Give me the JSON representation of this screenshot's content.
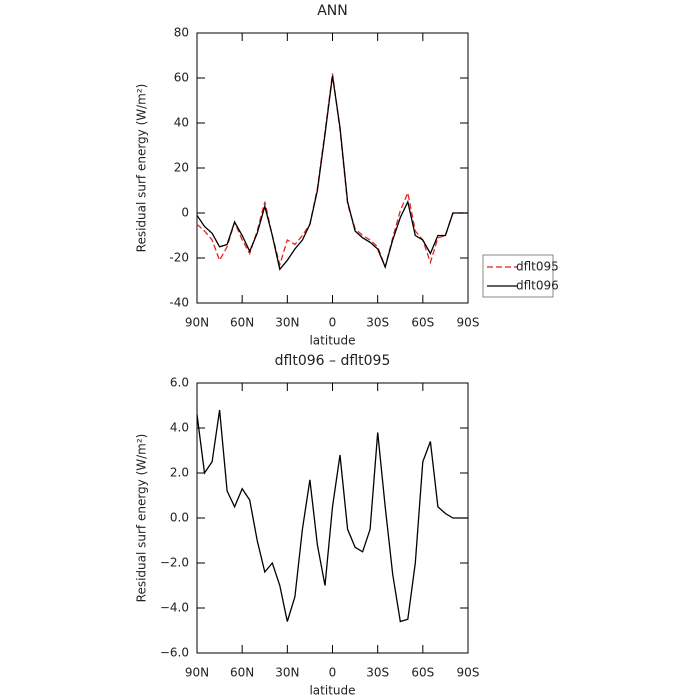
{
  "chart_data": [
    {
      "type": "line",
      "title": "ANN",
      "xlabel": "latitude",
      "ylabel": "Residual surf energy (W/m²)",
      "x": [
        90,
        85,
        80,
        75,
        70,
        65,
        60,
        55,
        50,
        45,
        40,
        35,
        30,
        25,
        20,
        15,
        10,
        5,
        0,
        -5,
        -10,
        -15,
        -20,
        -25,
        -30,
        -35,
        -40,
        -45,
        -50,
        -55,
        -60,
        -65,
        -70,
        -75,
        -80,
        -85,
        -90
      ],
      "series": [
        {
          "name": "dflt095",
          "color": "#e8231f",
          "dash": true,
          "values": [
            -5,
            -8,
            -12,
            -21,
            -15,
            -4,
            -12,
            -18,
            -8,
            5,
            -10,
            -23,
            -12,
            -14,
            -10,
            -5,
            11,
            36,
            62,
            37,
            4,
            -7,
            -10,
            -12,
            -15,
            -24,
            -11,
            1,
            9,
            -8,
            -12,
            -22,
            -11,
            -10,
            0,
            0,
            0
          ]
        },
        {
          "name": "dflt096",
          "color": "#000000",
          "dash": false,
          "values": [
            -1,
            -6,
            -9,
            -15,
            -14,
            -4,
            -10,
            -17,
            -9,
            3,
            -10,
            -25,
            -21,
            -16,
            -12,
            -5,
            10,
            35,
            61,
            38,
            5,
            -8,
            -11,
            -13,
            -16,
            -24,
            -12,
            -2,
            5,
            -10,
            -12,
            -18,
            -10,
            -10,
            0,
            0,
            0
          ]
        }
      ],
      "xlim": [
        90,
        -90
      ],
      "xticks": [
        {
          "value": 90,
          "label": "90N"
        },
        {
          "value": 60,
          "label": "60N"
        },
        {
          "value": 30,
          "label": "30N"
        },
        0,
        {
          "value": -30,
          "label": "30S"
        },
        {
          "value": -60,
          "label": "60S"
        },
        {
          "value": -90,
          "label": "90S"
        }
      ],
      "ylim": [
        -40,
        80
      ],
      "yticks": [
        -40,
        -20,
        0,
        20,
        40,
        60,
        80
      ]
    },
    {
      "type": "line",
      "title": "dflt096 – dflt095",
      "xlabel": "latitude",
      "ylabel": "Residual surf energy (W/m²)",
      "x": [
        90,
        85,
        80,
        75,
        70,
        65,
        60,
        55,
        50,
        45,
        40,
        35,
        30,
        25,
        20,
        15,
        10,
        5,
        0,
        -5,
        -10,
        -15,
        -20,
        -25,
        -30,
        -35,
        -40,
        -45,
        -50,
        -55,
        -60,
        -65,
        -70,
        -75,
        -80,
        -85,
        -90
      ],
      "series": [
        {
          "color": "#000000",
          "dash": false,
          "values": [
            4.6,
            2.0,
            2.5,
            4.8,
            1.2,
            0.5,
            1.3,
            0.8,
            -1.0,
            -2.4,
            -2.0,
            -3.0,
            -4.6,
            -3.5,
            -0.5,
            1.7,
            -1.2,
            -3.0,
            0.5,
            2.8,
            -0.5,
            -1.3,
            -1.5,
            -0.5,
            3.8,
            0.5,
            -2.5,
            -4.6,
            -4.5,
            -2.0,
            2.5,
            3.4,
            0.5,
            0.2,
            0,
            0,
            0
          ]
        }
      ],
      "xlim": [
        90,
        -90
      ],
      "xticks": [
        {
          "value": 90,
          "label": "90N"
        },
        {
          "value": 60,
          "label": "60N"
        },
        {
          "value": 30,
          "label": "30N"
        },
        0,
        {
          "value": -30,
          "label": "30S"
        },
        {
          "value": -60,
          "label": "60S"
        },
        {
          "value": -90,
          "label": "90S"
        }
      ],
      "ylim": [
        -6,
        6
      ],
      "yticks": [
        {
          "value": -6,
          "label": "−6.0"
        },
        {
          "value": -4,
          "label": "−4.0"
        },
        {
          "value": -2,
          "label": "−2.0"
        },
        {
          "value": 0,
          "label": "0.0"
        },
        {
          "value": 2,
          "label": "2.0"
        },
        {
          "value": 4,
          "label": "4.0"
        },
        {
          "value": 6,
          "label": "6.0"
        }
      ]
    }
  ]
}
